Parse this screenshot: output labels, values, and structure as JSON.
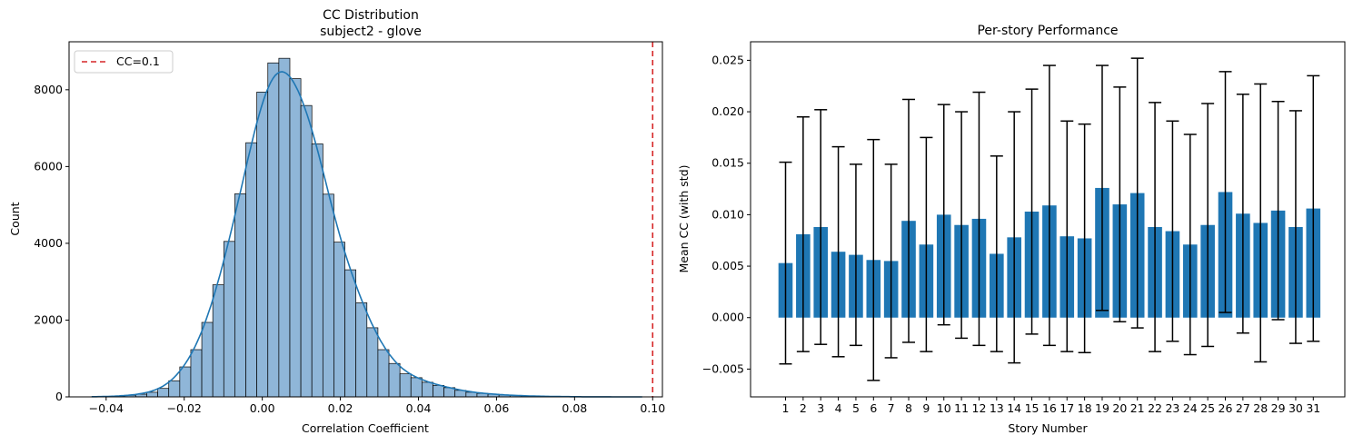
{
  "chart_data": [
    {
      "type": "bar",
      "title": "CC Distribution",
      "subtitle": "subject2 - glove",
      "xlabel": "Correlation Coefficient",
      "ylabel": "Count",
      "xlim": [
        -0.0495,
        0.1025
      ],
      "ylim": [
        0,
        9250
      ],
      "xticks": [
        -0.04,
        -0.02,
        0.0,
        0.02,
        0.04,
        0.06,
        0.08,
        0.1
      ],
      "xtick_labels": [
        "−0.04",
        "−0.02",
        "0.00",
        "0.02",
        "0.04",
        "0.06",
        "0.08",
        "0.10"
      ],
      "yticks": [
        0,
        2000,
        4000,
        6000,
        8000
      ],
      "ytick_labels": [
        "0",
        "2000",
        "4000",
        "6000",
        "8000"
      ],
      "bin_start": -0.0437,
      "bin_width": 0.00282,
      "counts": [
        5,
        10,
        20,
        40,
        70,
        120,
        220,
        420,
        780,
        1230,
        1940,
        2920,
        4050,
        5290,
        6620,
        7940,
        8700,
        8820,
        8290,
        7590,
        6590,
        5280,
        4030,
        3310,
        2450,
        1800,
        1230,
        870,
        600,
        500,
        380,
        300,
        240,
        170,
        120,
        90,
        70,
        50,
        35,
        25,
        18,
        12,
        8,
        5,
        3,
        2,
        1,
        1,
        1,
        1
      ],
      "bar_color": "#8fb6d8",
      "kde_color": "#1f77b4",
      "refline": {
        "x": 0.1,
        "color": "#d62728",
        "label": "CC=0.1"
      },
      "legend": "top-left",
      "grid": false
    },
    {
      "type": "bar",
      "title": "Per-story Performance",
      "xlabel": "Story Number",
      "ylabel": "Mean CC (with std)",
      "ylim": [
        -0.0077,
        0.0268
      ],
      "yticks": [
        -0.005,
        0.0,
        0.005,
        0.01,
        0.015,
        0.02,
        0.025
      ],
      "ytick_labels": [
        "−0.005",
        "0.000",
        "0.005",
        "0.010",
        "0.015",
        "0.020",
        "0.025"
      ],
      "categories": [
        "1",
        "2",
        "3",
        "4",
        "5",
        "6",
        "7",
        "8",
        "9",
        "10",
        "11",
        "12",
        "13",
        "14",
        "15",
        "16",
        "17",
        "18",
        "19",
        "20",
        "21",
        "22",
        "23",
        "24",
        "25",
        "26",
        "27",
        "28",
        "29",
        "30",
        "31"
      ],
      "values": [
        0.0053,
        0.0081,
        0.0088,
        0.0064,
        0.0061,
        0.0056,
        0.0055,
        0.0094,
        0.0071,
        0.01,
        0.009,
        0.0096,
        0.0062,
        0.0078,
        0.0103,
        0.0109,
        0.0079,
        0.0077,
        0.0126,
        0.011,
        0.0121,
        0.0088,
        0.0084,
        0.0071,
        0.009,
        0.0122,
        0.0101,
        0.0092,
        0.0104,
        0.0088,
        0.0106
      ],
      "std": [
        0.0098,
        0.0114,
        0.0114,
        0.0102,
        0.0088,
        0.0117,
        0.0094,
        0.0118,
        0.0104,
        0.0107,
        0.011,
        0.0123,
        0.0095,
        0.0122,
        0.0119,
        0.0136,
        0.0112,
        0.0111,
        0.0119,
        0.0114,
        0.0131,
        0.0121,
        0.0107,
        0.0107,
        0.0118,
        0.0117,
        0.0116,
        0.0135,
        0.0106,
        0.0113,
        0.0129
      ],
      "bar_color": "#1f77b4",
      "grid": false
    }
  ]
}
